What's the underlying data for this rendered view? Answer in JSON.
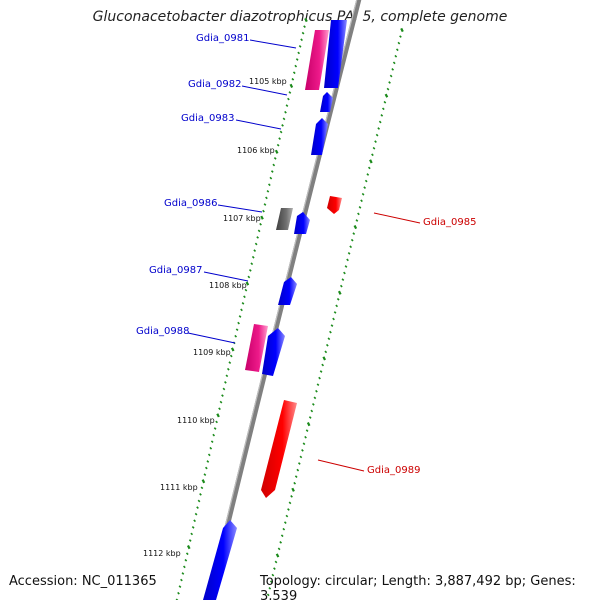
{
  "title": "Gluconacetobacter diazotrophicus PAl 5, complete genome",
  "accession": "Accession: NC_011365",
  "summary": "Topology: circular; Length: 3,887,492 bp; Genes: 3,539",
  "colors": {
    "backbone": "#808080",
    "tick": "#1a8a1a",
    "gene_forward": "#0000ff",
    "gene_reverse": "#ff0000",
    "gene_rna": "#e6007a",
    "gene_other": "#606060",
    "label_forward": "#0000cc",
    "label_reverse": "#cc0000"
  },
  "tick_labels": [
    "1105 kbp",
    "1106 kbp",
    "1107 kbp",
    "1108 kbp",
    "1109 kbp",
    "1110 kbp",
    "1111 kbp",
    "1112 kbp"
  ],
  "gene_labels": [
    {
      "name": "Gdia_0981",
      "strand": "forward"
    },
    {
      "name": "Gdia_0982",
      "strand": "forward"
    },
    {
      "name": "Gdia_0983",
      "strand": "forward"
    },
    {
      "name": "Gdia_0986",
      "strand": "forward"
    },
    {
      "name": "Gdia_0985",
      "strand": "reverse"
    },
    {
      "name": "Gdia_0987",
      "strand": "forward"
    },
    {
      "name": "Gdia_0988",
      "strand": "forward"
    },
    {
      "name": "Gdia_0989",
      "strand": "reverse"
    }
  ]
}
